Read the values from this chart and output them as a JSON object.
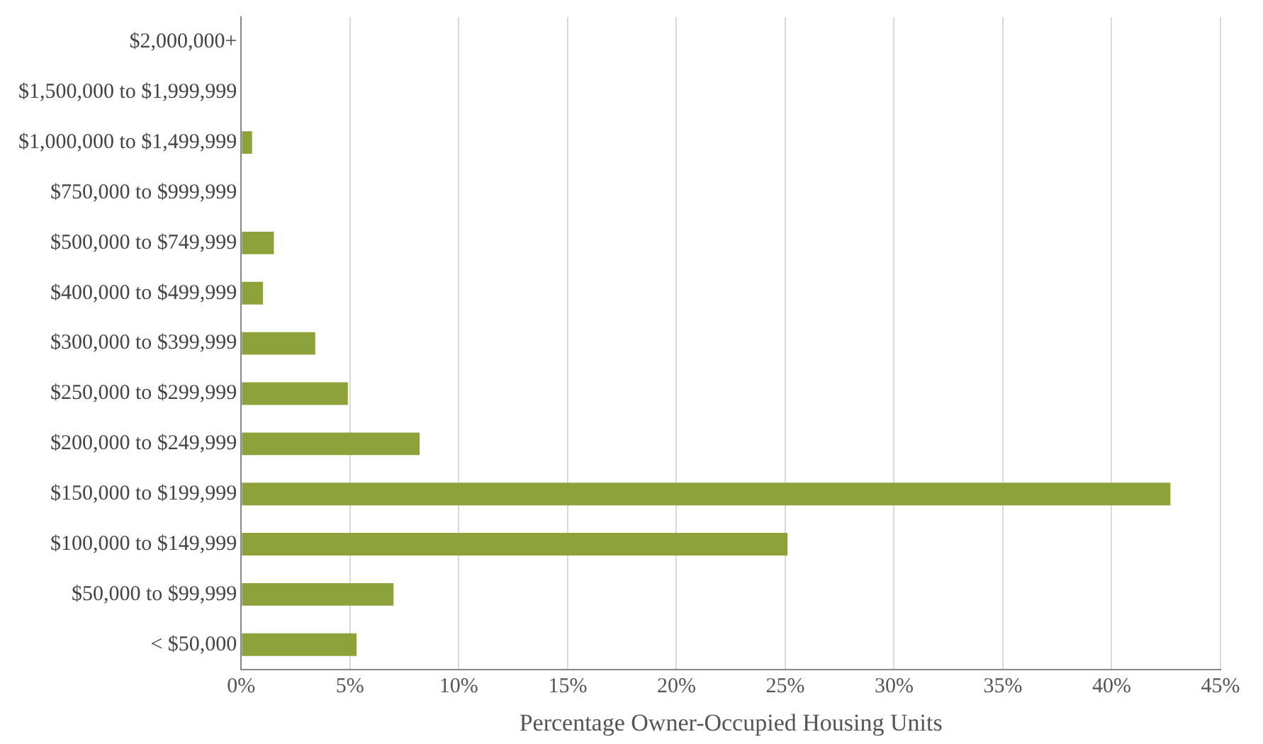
{
  "chart_data": {
    "type": "bar",
    "orientation": "horizontal",
    "xlabel": "Percentage Owner-Occupied Housing Units",
    "categories": [
      "$2,000,000+",
      "$1,500,000 to $1,999,999",
      "$1,000,000 to $1,499,999",
      "$750,000 to $999,999",
      "$500,000 to $749,999",
      "$400,000 to $499,999",
      "$300,000 to $399,999",
      "$250,000 to $299,999",
      "$200,000 to $249,999",
      "$150,000 to $199,999",
      "$100,000 to $149,999",
      "$50,000 to $99,999",
      "< $50,000"
    ],
    "values": [
      0,
      0,
      0.5,
      0,
      1.5,
      1.0,
      3.4,
      4.9,
      8.2,
      42.7,
      25.1,
      7.0,
      5.3
    ],
    "color": "#8ea23b",
    "xlim": [
      0,
      45
    ],
    "xticks": [
      {
        "value": 0,
        "label": "0%"
      },
      {
        "value": 5,
        "label": "5%"
      },
      {
        "value": 10,
        "label": "10%"
      },
      {
        "value": 15,
        "label": "15%"
      },
      {
        "value": 20,
        "label": "20%"
      },
      {
        "value": 25,
        "label": "25%"
      },
      {
        "value": 30,
        "label": "30%"
      },
      {
        "value": 35,
        "label": "35%"
      },
      {
        "value": 40,
        "label": "40%"
      },
      {
        "value": 45,
        "label": "45%"
      }
    ],
    "grid": "x",
    "legend": false
  }
}
